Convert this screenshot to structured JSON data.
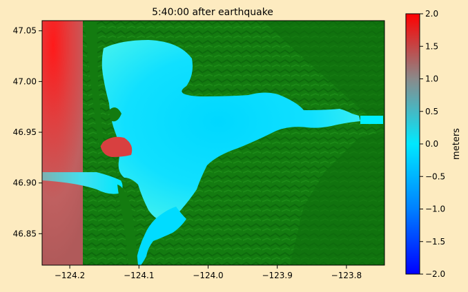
{
  "figure": {
    "background": "#fdebc0"
  },
  "chart_data": {
    "type": "heatmap",
    "title": "5:40:00 after earthquake",
    "xlabel": "",
    "ylabel": "",
    "xlim": [
      -124.24,
      -123.745
    ],
    "ylim": [
      46.819,
      47.06
    ],
    "x_ticks": [
      -124.2,
      -124.1,
      -124.0,
      -123.9,
      -123.8
    ],
    "x_tick_labels": [
      "−124.2",
      "−124.1",
      "−124.0",
      "−123.9",
      "−123.8"
    ],
    "y_ticks": [
      46.85,
      46.9,
      46.95,
      47.0,
      47.05
    ],
    "y_tick_labels": [
      "46.85",
      "46.90",
      "46.95",
      "47.00",
      "47.05"
    ],
    "grid": false,
    "colorbar": {
      "label": "meters",
      "range": [
        -2.0,
        2.0
      ],
      "ticks": [
        -2.0,
        -1.5,
        -1.0,
        -0.5,
        0.0,
        0.5,
        1.0,
        1.5,
        2.0
      ],
      "tick_labels": [
        "−2.0",
        "−1.5",
        "−1.0",
        "−0.5",
        "0.0",
        "0.5",
        "1.0",
        "1.5",
        "2.0"
      ],
      "colormap": [
        "#0000ff",
        "#0080ff",
        "#00e8ff",
        "#8a8a8a",
        "#ff0000"
      ],
      "colormap_stops": [
        -2.0,
        -1.0,
        0.0,
        1.0,
        2.0
      ]
    },
    "land_color": "#137b10",
    "land_color_dark": "#0a5c0a"
  }
}
